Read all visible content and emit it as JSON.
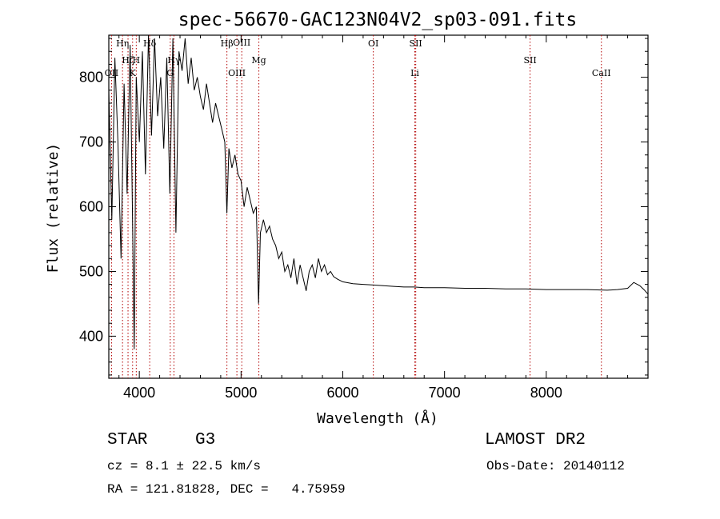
{
  "chart_data": {
    "type": "line",
    "title": "spec-56670-GAC123N04V2_sp03-091.fits",
    "xlabel": "Wavelength (Å)",
    "ylabel": "Flux (relative)",
    "xlim": [
      3700,
      9000
    ],
    "ylim": [
      335,
      865
    ],
    "xticks": [
      4000,
      5000,
      6000,
      7000,
      8000
    ],
    "yticks": [
      400,
      500,
      600,
      700,
      800
    ],
    "grid": false,
    "series": [
      {
        "x": [
          3700,
          3730,
          3760,
          3790,
          3820,
          3850,
          3880,
          3910,
          3935,
          3950,
          3970,
          4000,
          4030,
          4060,
          4090,
          4120,
          4150,
          4180,
          4210,
          4240,
          4270,
          4300,
          4330,
          4360,
          4390,
          4420,
          4450,
          4480,
          4510,
          4540,
          4570,
          4600,
          4630,
          4660,
          4690,
          4720,
          4750,
          4780,
          4810,
          4840,
          4861,
          4880,
          4910,
          4940,
          4970,
          5000,
          5030,
          5060,
          5090,
          5120,
          5150,
          5172,
          5190,
          5220,
          5250,
          5280,
          5310,
          5340,
          5370,
          5400,
          5430,
          5460,
          5490,
          5520,
          5550,
          5580,
          5610,
          5640,
          5670,
          5700,
          5730,
          5760,
          5790,
          5820,
          5850,
          5880,
          5910,
          5950,
          6000,
          6100,
          6200,
          6300,
          6400,
          6500,
          6600,
          6700,
          6800,
          6900,
          7000,
          7200,
          7400,
          7600,
          7800,
          8000,
          8200,
          8400,
          8600,
          8700,
          8800,
          8860,
          8920,
          8960,
          9000
        ],
        "y": [
          780,
          580,
          830,
          700,
          520,
          790,
          620,
          850,
          560,
          380,
          800,
          700,
          840,
          650,
          880,
          710,
          860,
          740,
          800,
          690,
          830,
          620,
          860,
          560,
          840,
          810,
          860,
          790,
          830,
          780,
          800,
          770,
          750,
          790,
          760,
          730,
          760,
          740,
          720,
          700,
          590,
          690,
          660,
          680,
          650,
          640,
          600,
          630,
          610,
          590,
          600,
          450,
          560,
          580,
          560,
          570,
          550,
          540,
          520,
          530,
          500,
          510,
          490,
          520,
          480,
          510,
          490,
          470,
          500,
          510,
          490,
          520,
          500,
          510,
          495,
          500,
          492,
          488,
          484,
          481,
          480,
          479,
          478,
          477,
          476,
          476,
          475,
          475,
          475,
          474,
          474,
          473,
          473,
          472,
          472,
          472,
          471,
          472,
          474,
          483,
          478,
          472,
          465
        ]
      }
    ],
    "lines": [
      {
        "name": "Hη",
        "x": 3835,
        "row": 1
      },
      {
        "name": "Hζ",
        "x": 3889,
        "row": 2
      },
      {
        "name": "H",
        "x": 3970,
        "row": 3
      },
      {
        "name": "K",
        "x": 3934,
        "row": 4
      },
      {
        "name": "OII",
        "x": 3727,
        "row": 5
      },
      {
        "name": "Hδ",
        "x": 4102,
        "row": 1
      },
      {
        "name": "Hγ",
        "x": 4340,
        "row": 3
      },
      {
        "name": "G",
        "x": 4304,
        "row": 4
      },
      {
        "name": "Hβ",
        "x": 4861,
        "row": 1
      },
      {
        "name": "OIII",
        "x": 4959,
        "row": 5
      },
      {
        "name": "OIII",
        "x": 5007,
        "row": 0
      },
      {
        "name": "Mg",
        "x": 5175,
        "row": 3
      },
      {
        "name": "OI",
        "x": 6300,
        "row": 1
      },
      {
        "name": "SII",
        "x": 6717,
        "row": 1
      },
      {
        "name": "Li",
        "x": 6708,
        "row": 5
      },
      {
        "name": "SII",
        "x": 7841,
        "row": 3
      },
      {
        "name": "CaII",
        "x": 8542,
        "row": 5
      }
    ]
  },
  "info": {
    "class": "STAR",
    "subclass": "G3",
    "survey": "LAMOST DR2",
    "cz": "cz = 8.1 ± 22.5 km/s",
    "obs_date": "Obs-Date: 20140112",
    "radec": "RA = 121.81828, DEC =   4.75959"
  },
  "colors": {
    "line_marker": "#b30000",
    "spectrum": "#000000"
  }
}
